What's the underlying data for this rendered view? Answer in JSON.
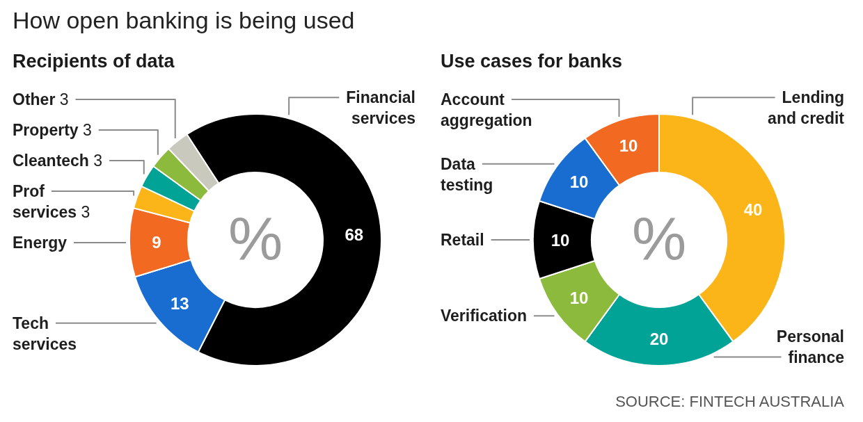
{
  "chart_data": [
    {
      "type": "donut",
      "title": "Recipients of data",
      "categories": [
        "Financial services",
        "Tech services",
        "Energy",
        "Prof services",
        "Cleantech",
        "Property",
        "Other"
      ],
      "values": [
        68,
        13,
        9,
        3,
        3,
        3,
        3
      ],
      "colors": [
        "#000000",
        "#1a6dd0",
        "#f26a22",
        "#fbb519",
        "#00a396",
        "#8cba3c",
        "#c9c9bd"
      ],
      "data_labels": true,
      "annotations": [
        "How open banking is being used",
        "%"
      ]
    },
    {
      "type": "donut",
      "title": "Use cases for banks",
      "categories": [
        "Lending and credit",
        "Personal finance",
        "Verification",
        "Retail",
        "Data testing",
        "Account aggregation"
      ],
      "values": [
        40,
        20,
        10,
        10,
        10,
        10
      ],
      "colors": [
        "#fbb519",
        "#00a396",
        "#8cba3c",
        "#000000",
        "#1a6dd0",
        "#f26a22"
      ],
      "data_labels": true,
      "annotations": [
        "%",
        "SOURCE: FINTECH AUSTRALIA"
      ]
    }
  ]
}
